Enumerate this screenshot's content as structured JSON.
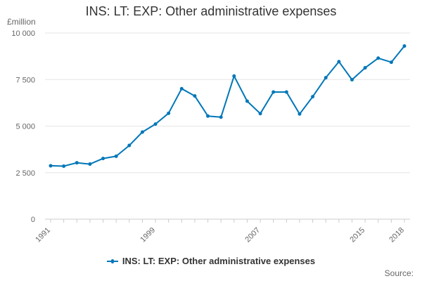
{
  "chart_data": {
    "type": "line",
    "title": "INS: LT: EXP: Other administrative expenses",
    "ylabel": "£million",
    "xlabel": "",
    "source_label": "Source:",
    "x": [
      1991,
      1992,
      1993,
      1994,
      1995,
      1996,
      1997,
      1998,
      1999,
      2000,
      2001,
      2002,
      2003,
      2004,
      2005,
      2006,
      2007,
      2008,
      2009,
      2010,
      2011,
      2012,
      2013,
      2014,
      2015,
      2016,
      2017,
      2018
    ],
    "series": [
      {
        "name": "INS: LT: EXP: Other administrative expenses",
        "color": "#0077b8",
        "values": [
          2870,
          2850,
          3030,
          2960,
          3260,
          3380,
          3960,
          4680,
          5110,
          5690,
          7010,
          6620,
          5540,
          5480,
          7690,
          6340,
          5670,
          6830,
          6830,
          5650,
          6580,
          7600,
          8460,
          7490,
          8130,
          8650,
          8430,
          9300
        ]
      }
    ],
    "ylim": [
      0,
      10000
    ],
    "y_ticks": [
      0,
      2500,
      5000,
      7500,
      10000
    ],
    "y_tick_labels": [
      "0",
      "2 500",
      "5 000",
      "7 500",
      "10 000"
    ],
    "x_tick_labels": [
      {
        "year": 1991,
        "label": "1991"
      },
      {
        "year": 1999,
        "label": "1999"
      },
      {
        "year": 2007,
        "label": "2007"
      },
      {
        "year": 2015,
        "label": "2015"
      },
      {
        "year": 2018,
        "label": "2018"
      }
    ],
    "grid": true,
    "legend_position": "bottom-center"
  }
}
